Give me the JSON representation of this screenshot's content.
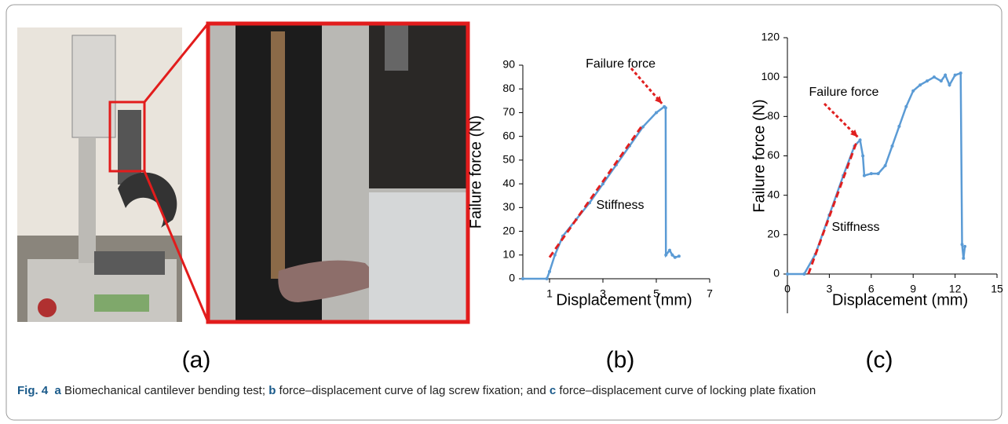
{
  "chart_data": [
    {
      "type": "line",
      "panel": "(b)",
      "xlabel": "Displacement (mm)",
      "ylabel": "Failure force (N)",
      "xlim": [
        0,
        7
      ],
      "xticks": [
        1,
        3,
        5,
        7
      ],
      "ylim": [
        0,
        90
      ],
      "yticks": [
        0,
        10,
        20,
        30,
        40,
        50,
        60,
        70,
        80,
        90
      ],
      "annotations": [
        "Failure force",
        "Stiffness"
      ],
      "series": [
        {
          "color": "#5b9bd5",
          "line_style": "solid",
          "markers": true,
          "x": [
            0,
            0.9,
            1.0,
            1.2,
            1.5,
            2,
            2.5,
            3,
            3.5,
            4,
            4.5,
            5,
            5.3,
            5.35,
            5.36,
            5.5,
            5.6,
            5.7,
            5.85
          ],
          "values": [
            0,
            0,
            3,
            10,
            18,
            25,
            32,
            40,
            48,
            56,
            64,
            70,
            72.5,
            72,
            10,
            12,
            10,
            9,
            9.5
          ]
        },
        {
          "color": "#e02020",
          "line_style": "dashed",
          "markers": false,
          "x": [
            1,
            4.5
          ],
          "values": [
            9,
            65
          ]
        }
      ]
    },
    {
      "type": "line",
      "panel": "(c)",
      "xlabel": "Displacement (mm)",
      "ylabel": "Failure force (N)",
      "xlim": [
        0,
        15
      ],
      "xticks": [
        0,
        3,
        6,
        9,
        12,
        15
      ],
      "ylim": [
        0,
        120
      ],
      "yticks": [
        0,
        20,
        40,
        60,
        80,
        100,
        120
      ],
      "annotations": [
        "Failure force",
        "Stiffness"
      ],
      "series": [
        {
          "color": "#5b9bd5",
          "line_style": "solid",
          "markers": true,
          "x": [
            0,
            1.2,
            2,
            3,
            4,
            4.8,
            5.2,
            5.4,
            5.5,
            6,
            6.5,
            7,
            7.5,
            8,
            8.5,
            9,
            9.5,
            10,
            10.5,
            11,
            11.3,
            11.6,
            12,
            12.4,
            12.5,
            12.6,
            12.7
          ],
          "values": [
            0,
            0,
            10,
            30,
            50,
            65,
            68,
            60,
            50,
            51,
            51,
            55,
            65,
            75,
            85,
            93,
            96,
            98,
            100,
            98,
            101,
            96,
            101,
            102,
            15,
            8,
            14
          ]
        },
        {
          "color": "#e02020",
          "line_style": "dashed",
          "markers": false,
          "x": [
            1.5,
            5
          ],
          "values": [
            0,
            68
          ]
        }
      ]
    }
  ],
  "panel_a": "(a)",
  "caption": {
    "label": "Fig. 4",
    "parts": [
      "a",
      " Biomechanical cantilever bending test; ",
      "b",
      " force–displacement curve of lag screw fixation; and ",
      "c",
      " force–displacement curve of locking plate fixation"
    ]
  }
}
